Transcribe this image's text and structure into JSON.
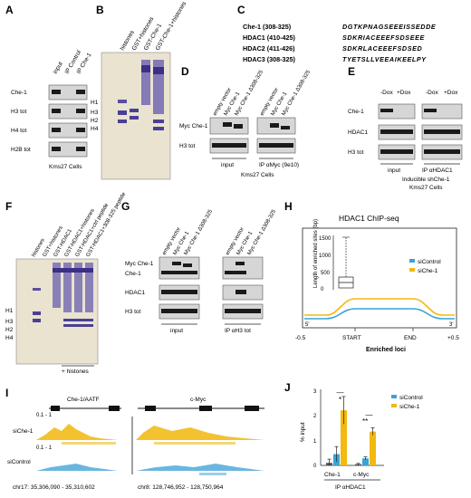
{
  "panels": {
    "A": "A",
    "B": "B",
    "C": "C",
    "D": "D",
    "E": "E",
    "F": "F",
    "G": "G",
    "H": "H",
    "I": "I",
    "J": "J"
  },
  "A": {
    "lanes": [
      "input",
      "IP Control",
      "IP Che-1"
    ],
    "rows": [
      "Che-1",
      "H3 tot",
      "H4 tot",
      "H2B tot"
    ],
    "caption": "Kms27 Cells"
  },
  "B": {
    "lanes": [
      "histones",
      "GST+histones",
      "GST-Che-1",
      "GST-Che-1+histones"
    ],
    "markers": [
      "H1",
      "H3",
      "H2",
      "H4"
    ]
  },
  "C": {
    "rows": [
      {
        "name": "Che-1 (308-325)",
        "seq": "DGTKPNAGSEEEISSEDDE"
      },
      {
        "name": "HDAC1 (410-425)",
        "seq": "SDKRIACEEEFSDSEEE"
      },
      {
        "name": "HDAC2 (411-426)",
        "seq": "SDKRLACEEEFSDSED"
      },
      {
        "name": "HDAC3 (308-325)",
        "seq": "TYETSLLVEEAIKEELPY"
      }
    ]
  },
  "D": {
    "lanes": [
      "empty vector",
      "Myc Che-1",
      "Myc Che-1 Δ308-325",
      "empty vector",
      "Myc Che-1",
      "Myc Che-1 Δ308-325"
    ],
    "rows": [
      "Myc Che-1",
      "H3 tot"
    ],
    "groups": [
      "input",
      "IP αMyc (9e10)"
    ],
    "caption": "Kms27 Cells"
  },
  "E": {
    "lanes": [
      "-Dox",
      "+Dox",
      "-Dox",
      "+Dox"
    ],
    "rows": [
      "Che-1",
      "HDAC1",
      "H3 tot"
    ],
    "groups": [
      "input",
      "IP αHDAC1"
    ],
    "caption1": "Inducible shChe-1",
    "caption2": "Kms27 Cells"
  },
  "F": {
    "lanes": [
      "histones",
      "GST+histones",
      "GST-HDAC1",
      "GST-HDAC1+histones",
      "GST-HDAC1+ctrl peptide",
      "GST-HDAC1+308-325 peptide"
    ],
    "markers": [
      "H1",
      "H3",
      "H2",
      "H4"
    ],
    "caption": "+ histones"
  },
  "G": {
    "lanes": [
      "empty vector",
      "Myc Che-1",
      "Myc Che-1 Δ308-325",
      "empty vector",
      "Myc Che-1",
      "Myc Che-1 Δ308-325"
    ],
    "rows": [
      "Myc Che-1",
      "Che-1",
      "HDAC1",
      "H3 tot"
    ],
    "groups": [
      "input",
      "IP αH3 tot"
    ]
  },
  "H": {
    "title": "HDAC1 ChIP-seq",
    "legend": [
      "siControl",
      "siChe-1"
    ],
    "xlabel": "Enriched loci",
    "xticks": [
      "-0.5",
      "START",
      "END",
      "+0.5"
    ],
    "end5": "5'",
    "end3": "3'",
    "inset_ylabel": "Length of enriched sites (bp)",
    "inset_ticks": [
      "0",
      "500",
      "1000",
      "1500"
    ],
    "colors": {
      "siControl": "#3aa3d6",
      "siChe-1": "#f2b90f"
    }
  },
  "I": {
    "genes": [
      "Che-1/AATF",
      "c-Myc"
    ],
    "tracks": [
      "siChe-1",
      "siControl"
    ],
    "scale": "0.1 - 1",
    "coords": [
      "chr17: 35,306,090 - 35,310,602",
      "chr8: 128,746,952 - 128,750,964"
    ],
    "colors": {
      "siChe-1": "#f2c230",
      "siControl": "#6ab6e0"
    }
  },
  "J": {
    "ylabel": "% input",
    "yticks": [
      "0",
      "1",
      "2",
      "3"
    ],
    "categories": [
      "Che-1",
      "c-Myc"
    ],
    "xlabel": "IP αHDAC1",
    "legend": [
      "siControl",
      "siChe-1"
    ],
    "sig": [
      "*",
      "**"
    ]
  },
  "chart_data": {
    "type": "bar",
    "categories": [
      "Che-1",
      "c-Myc"
    ],
    "series": [
      {
        "name": "",
        "values": [
          0.1,
          0.05
        ],
        "errors": [
          0.15,
          0.03
        ],
        "color": "#555555"
      },
      {
        "name": "siControl",
        "values": [
          0.45,
          0.28
        ],
        "errors": [
          0.3,
          0.06
        ],
        "color": "#3aa3d6"
      },
      {
        "name": "siChe-1",
        "values": [
          2.2,
          1.35
        ],
        "errors": [
          0.55,
          0.15
        ],
        "color": "#f2b90f"
      }
    ],
    "ylabel": "% input",
    "xlabel": "IP αHDAC1",
    "ylim": [
      0,
      3
    ]
  }
}
